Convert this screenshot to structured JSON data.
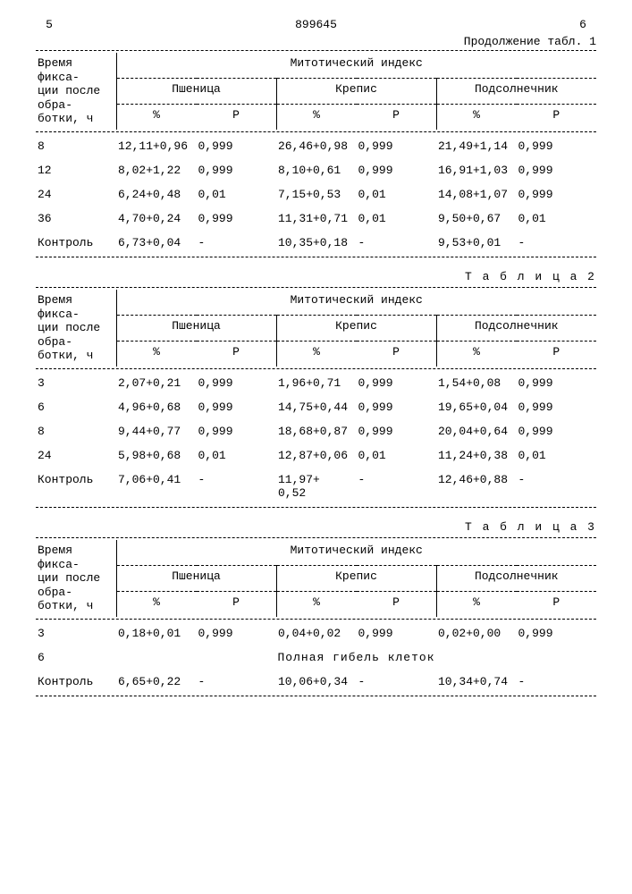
{
  "doc": {
    "left_col": "5",
    "right_col": "6",
    "number": "899645",
    "continuation": "Продолжение табл. 1"
  },
  "headers": {
    "time_label": "Время фикса-\nции после обра-\nботки, ч",
    "mitotic": "Митотический индекс",
    "plants": [
      "Пшеница",
      "Крепис",
      "Подсолнечник"
    ],
    "pct": "%",
    "P": "P"
  },
  "table1": {
    "rows": [
      {
        "t": "8",
        "p1": "12,11+0,96",
        "P1": "0,999",
        "p2": "26,46+0,98",
        "P2": "0,999",
        "p3": "21,49+1,14",
        "P3": "0,999"
      },
      {
        "t": "12",
        "p1": "8,02+1,22",
        "P1": "0,999",
        "p2": "8,10+0,61",
        "P2": "0,999",
        "p3": "16,91+1,03",
        "P3": "0,999"
      },
      {
        "t": "24",
        "p1": "6,24+0,48",
        "P1": "0,01",
        "p2": "7,15+0,53",
        "P2": "0,01",
        "p3": "14,08+1,07",
        "P3": "0,999"
      },
      {
        "t": "36",
        "p1": "4,70+0,24",
        "P1": "0,999",
        "p2": "11,31+0,71",
        "P2": "0,01",
        "p3": "9,50+0,67",
        "P3": "0,01"
      },
      {
        "t": "Контроль",
        "p1": "6,73+0,04",
        "P1": "-",
        "p2": "10,35+0,18",
        "P2": "-",
        "p3": "9,53+0,01",
        "P3": "-"
      }
    ]
  },
  "table2": {
    "caption": "Т а б л и ц а  2",
    "rows": [
      {
        "t": "3",
        "p1": "2,07+0,21",
        "P1": "0,999",
        "p2": "1,96+0,71",
        "P2": "0,999",
        "p3": "1,54+0,08",
        "P3": "0,999"
      },
      {
        "t": "6",
        "p1": "4,96+0,68",
        "P1": "0,999",
        "p2": "14,75+0,44",
        "P2": "0,999",
        "p3": "19,65+0,04",
        "P3": "0,999"
      },
      {
        "t": "8",
        "p1": "9,44+0,77",
        "P1": "0,999",
        "p2": "18,68+0,87",
        "P2": "0,999",
        "p3": "20,04+0,64",
        "P3": "0,999"
      },
      {
        "t": "24",
        "p1": "5,98+0,68",
        "P1": "0,01",
        "p2": "12,87+0,06",
        "P2": "0,01",
        "p3": "11,24+0,38",
        "P3": "0,01"
      },
      {
        "t": "Контроль",
        "p1": "7,06+0,41",
        "P1": "-",
        "p2": "11,97+ 0,52",
        "P2": "-",
        "p3": "12,46+0,88",
        "P3": "-"
      }
    ]
  },
  "table3": {
    "caption": "Т а б л и ц а  3",
    "row3": {
      "t": "3",
      "p1": "0,18+0,01",
      "P1": "0,999",
      "p2": "0,04+0,02",
      "P2": "0,999",
      "p3": "0,02+0,00",
      "P3": "0,999"
    },
    "row6_t": "6",
    "row6_text": "Полная гибель клеток",
    "rowC": {
      "t": "Контроль",
      "p1": "6,65+0,22",
      "P1": "-",
      "p2": "10,06+0,34",
      "P2": "-",
      "p3": "10,34+0,74",
      "P3": "-"
    }
  },
  "colors": {
    "text": "#000000",
    "background": "#ffffff"
  }
}
